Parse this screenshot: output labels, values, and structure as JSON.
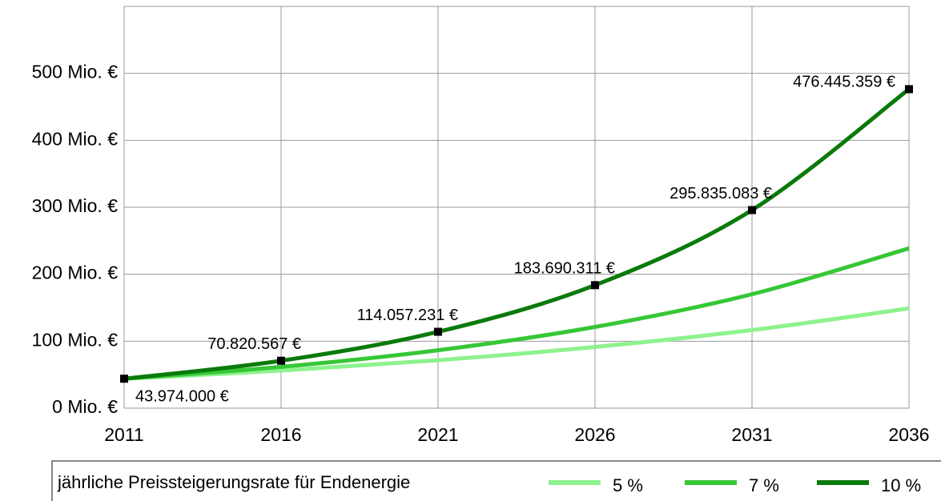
{
  "chart_data": {
    "type": "line",
    "x": [
      2011,
      2016,
      2021,
      2026,
      2031,
      2036
    ],
    "xlim": [
      2011,
      2036
    ],
    "xticks": [
      2011,
      2016,
      2021,
      2026,
      2031,
      2036
    ],
    "ylim": [
      0,
      600000000
    ],
    "yticks": [
      {
        "value": 0,
        "label": "0 Mio. €"
      },
      {
        "value": 100000000,
        "label": "100 Mio. €"
      },
      {
        "value": 200000000,
        "label": "200 Mio. €"
      },
      {
        "value": 300000000,
        "label": "300 Mio. €"
      },
      {
        "value": 400000000,
        "label": "400 Mio. €"
      },
      {
        "value": 500000000,
        "label": "500 Mio. €"
      }
    ],
    "grid": true,
    "legend_title": "jährliche Preissteigerungsrate für Endenergie",
    "legend": "bottom",
    "series": [
      {
        "name": "5 %",
        "color": "#8ef28e",
        "values": [
          43974000,
          56120000,
          71630000,
          91420000,
          116680000,
          148920000
        ]
      },
      {
        "name": "7 %",
        "color": "#36c736",
        "values": [
          43974000,
          61680000,
          86500000,
          121330000,
          170170000,
          238670000
        ]
      },
      {
        "name": "10 %",
        "color": "#0a7a0a",
        "values": [
          43974000,
          70820567,
          114057231,
          183690311,
          295835083,
          476445359
        ],
        "value_labels": [
          "43.974.000 €",
          "70.820.567 €",
          "114.057.231 €",
          "183.690.311 €",
          "295.835.083 €",
          "476.445.359 €"
        ]
      }
    ]
  }
}
